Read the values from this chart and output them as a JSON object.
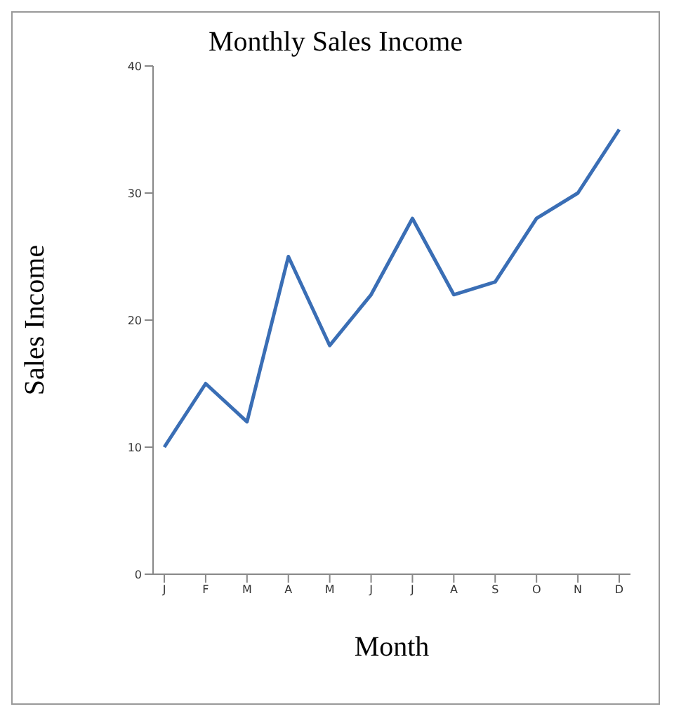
{
  "chart_data": {
    "type": "line",
    "title": "Monthly Sales Income",
    "xlabel": "Month",
    "ylabel": "Sales Income",
    "categories": [
      "J",
      "F",
      "M",
      "A",
      "M",
      "J",
      "J",
      "A",
      "S",
      "O",
      "N",
      "D"
    ],
    "series": [
      {
        "color": "#3a6eb5",
        "values": [
          10,
          15,
          12,
          25,
          18,
          22,
          28,
          22,
          23,
          28,
          30,
          35
        ]
      }
    ],
    "ylim": [
      0,
      40
    ],
    "yticks": [
      0,
      10,
      20,
      30,
      40
    ],
    "grid": false,
    "legend": false,
    "marker": "none",
    "line_style": "solid"
  }
}
